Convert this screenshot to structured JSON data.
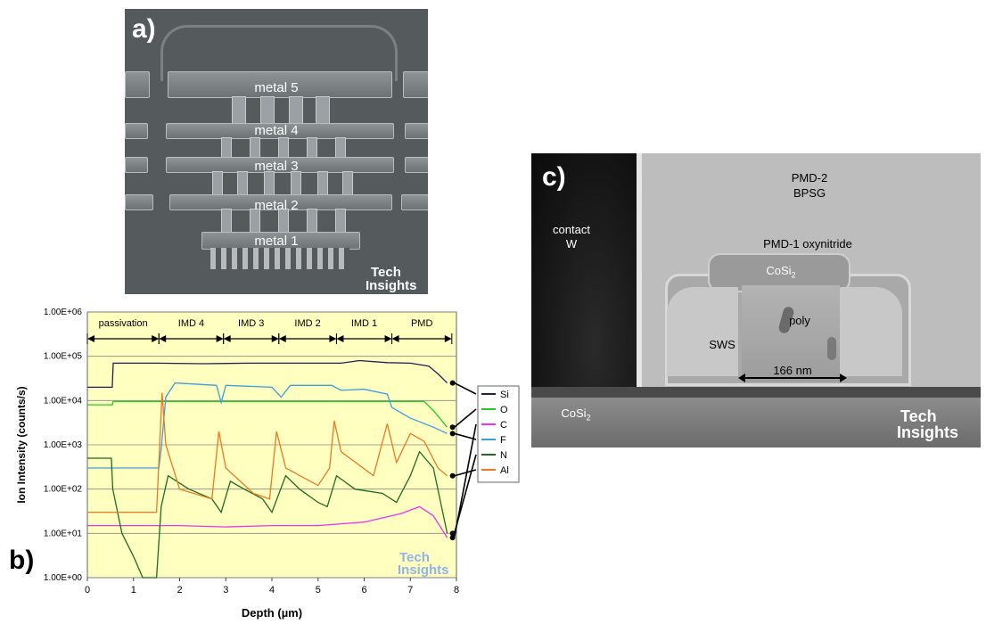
{
  "panel_a": {
    "label": "a)",
    "metal_labels": [
      "metal 5",
      "metal 4",
      "metal 3",
      "metal 2",
      "metal 1"
    ],
    "watermark": [
      "Tech",
      "Insights"
    ]
  },
  "panel_b": {
    "label": "b)",
    "watermark": [
      "Tech",
      "Insights"
    ],
    "regions": [
      {
        "name": "passivation",
        "start": 0.0,
        "end": 1.55
      },
      {
        "name": "IMD 4",
        "start": 1.55,
        "end": 2.95
      },
      {
        "name": "IMD 3",
        "start": 2.95,
        "end": 4.15
      },
      {
        "name": "IMD 2",
        "start": 4.15,
        "end": 5.4
      },
      {
        "name": "IMD 1",
        "start": 5.4,
        "end": 6.6
      },
      {
        "name": "PMD",
        "start": 6.6,
        "end": 7.9
      }
    ]
  },
  "panel_c": {
    "label": "c)",
    "labels": {
      "pmd2": "PMD-2",
      "bpsg": "BPSG",
      "contact": "contact",
      "w": "W",
      "pmd1": "PMD-1 oxynitride",
      "cosi_top": "CoSi",
      "cosi_sub": "2",
      "poly": "poly",
      "sws": "SWS",
      "width": "166 nm",
      "cosi_bottom": "CoSi",
      "cosi_bottom_sub": "2"
    },
    "watermark": [
      "Tech",
      "Insights"
    ]
  },
  "chart_data": {
    "type": "line",
    "xlabel": "Depth (µm)",
    "ylabel": "Ion Intensity (counts/s)",
    "xlim": [
      0,
      8
    ],
    "ylim": [
      1,
      1000000
    ],
    "log_y": true,
    "x_ticks": [
      "0",
      "1",
      "2",
      "3",
      "4",
      "5",
      "6",
      "7",
      "8"
    ],
    "y_ticks": [
      "1.00E+00",
      "1.00E+01",
      "1.00E+02",
      "1.00E+03",
      "1.00E+04",
      "1.00E+05",
      "1.00E+06"
    ],
    "grid": "horizontal",
    "legend_placement": "right",
    "series": [
      {
        "name": "Si",
        "color": "#1f1f5c",
        "points": [
          [
            0,
            20000
          ],
          [
            0.54,
            20000
          ],
          [
            0.56,
            70000
          ],
          [
            1.5,
            70000
          ],
          [
            2.5,
            68000
          ],
          [
            3.5,
            70000
          ],
          [
            4.5,
            70000
          ],
          [
            5.5,
            70000
          ],
          [
            5.9,
            80000
          ],
          [
            6.5,
            72000
          ],
          [
            7.0,
            70000
          ],
          [
            7.4,
            60000
          ],
          [
            7.6,
            40000
          ],
          [
            7.8,
            25000
          ]
        ]
      },
      {
        "name": "O",
        "color": "#22cc22",
        "points": [
          [
            0,
            8000
          ],
          [
            0.54,
            8000
          ],
          [
            0.56,
            9500
          ],
          [
            1.5,
            9500
          ],
          [
            3.0,
            9500
          ],
          [
            4.5,
            9500
          ],
          [
            6.0,
            9500
          ],
          [
            7.3,
            9500
          ],
          [
            7.5,
            6000
          ],
          [
            7.8,
            2500
          ]
        ]
      },
      {
        "name": "C",
        "color": "#ee33ee",
        "points": [
          [
            0,
            15
          ],
          [
            1,
            15
          ],
          [
            2,
            15
          ],
          [
            3,
            14
          ],
          [
            4,
            15
          ],
          [
            5,
            15
          ],
          [
            6,
            18
          ],
          [
            6.8,
            28
          ],
          [
            7.2,
            40
          ],
          [
            7.5,
            25
          ],
          [
            7.8,
            8
          ]
        ]
      },
      {
        "name": "F",
        "color": "#3a9ee0",
        "points": [
          [
            0,
            300
          ],
          [
            1.55,
            300
          ],
          [
            1.6,
            800
          ],
          [
            1.7,
            12000
          ],
          [
            1.9,
            25000
          ],
          [
            2.8,
            22000
          ],
          [
            2.9,
            9000
          ],
          [
            3.0,
            22000
          ],
          [
            4.0,
            20000
          ],
          [
            4.2,
            12000
          ],
          [
            4.4,
            22000
          ],
          [
            5.3,
            22000
          ],
          [
            5.5,
            17000
          ],
          [
            6.0,
            18000
          ],
          [
            6.5,
            14000
          ],
          [
            6.6,
            7000
          ],
          [
            7.0,
            4000
          ],
          [
            7.5,
            2500
          ],
          [
            7.8,
            1800
          ]
        ]
      },
      {
        "name": "N",
        "color": "#1f6b1f",
        "points": [
          [
            0,
            500
          ],
          [
            0.52,
            500
          ],
          [
            0.55,
            100
          ],
          [
            0.75,
            10
          ],
          [
            1.0,
            3
          ],
          [
            1.2,
            1
          ],
          [
            1.5,
            1
          ],
          [
            1.6,
            40
          ],
          [
            1.75,
            200
          ],
          [
            2.2,
            100
          ],
          [
            2.7,
            60
          ],
          [
            2.9,
            30
          ],
          [
            3.1,
            150
          ],
          [
            3.4,
            100
          ],
          [
            3.8,
            60
          ],
          [
            4.0,
            30
          ],
          [
            4.3,
            200
          ],
          [
            4.6,
            100
          ],
          [
            5.0,
            50
          ],
          [
            5.2,
            40
          ],
          [
            5.4,
            200
          ],
          [
            5.8,
            100
          ],
          [
            6.4,
            80
          ],
          [
            6.7,
            50
          ],
          [
            7.0,
            200
          ],
          [
            7.2,
            700
          ],
          [
            7.5,
            300
          ],
          [
            7.8,
            10
          ]
        ]
      },
      {
        "name": "Al",
        "color": "#ee7722",
        "points": [
          [
            0,
            30
          ],
          [
            1.5,
            30
          ],
          [
            1.62,
            15000
          ],
          [
            1.7,
            1000
          ],
          [
            2.0,
            100
          ],
          [
            2.7,
            60
          ],
          [
            2.85,
            2000
          ],
          [
            3.0,
            300
          ],
          [
            3.6,
            80
          ],
          [
            3.95,
            60
          ],
          [
            4.1,
            2000
          ],
          [
            4.3,
            300
          ],
          [
            5.0,
            120
          ],
          [
            5.25,
            300
          ],
          [
            5.35,
            3500
          ],
          [
            5.5,
            700
          ],
          [
            6.2,
            200
          ],
          [
            6.5,
            3000
          ],
          [
            6.7,
            400
          ],
          [
            7.0,
            1800
          ],
          [
            7.3,
            1200
          ],
          [
            7.6,
            300
          ],
          [
            7.8,
            200
          ]
        ]
      }
    ]
  }
}
